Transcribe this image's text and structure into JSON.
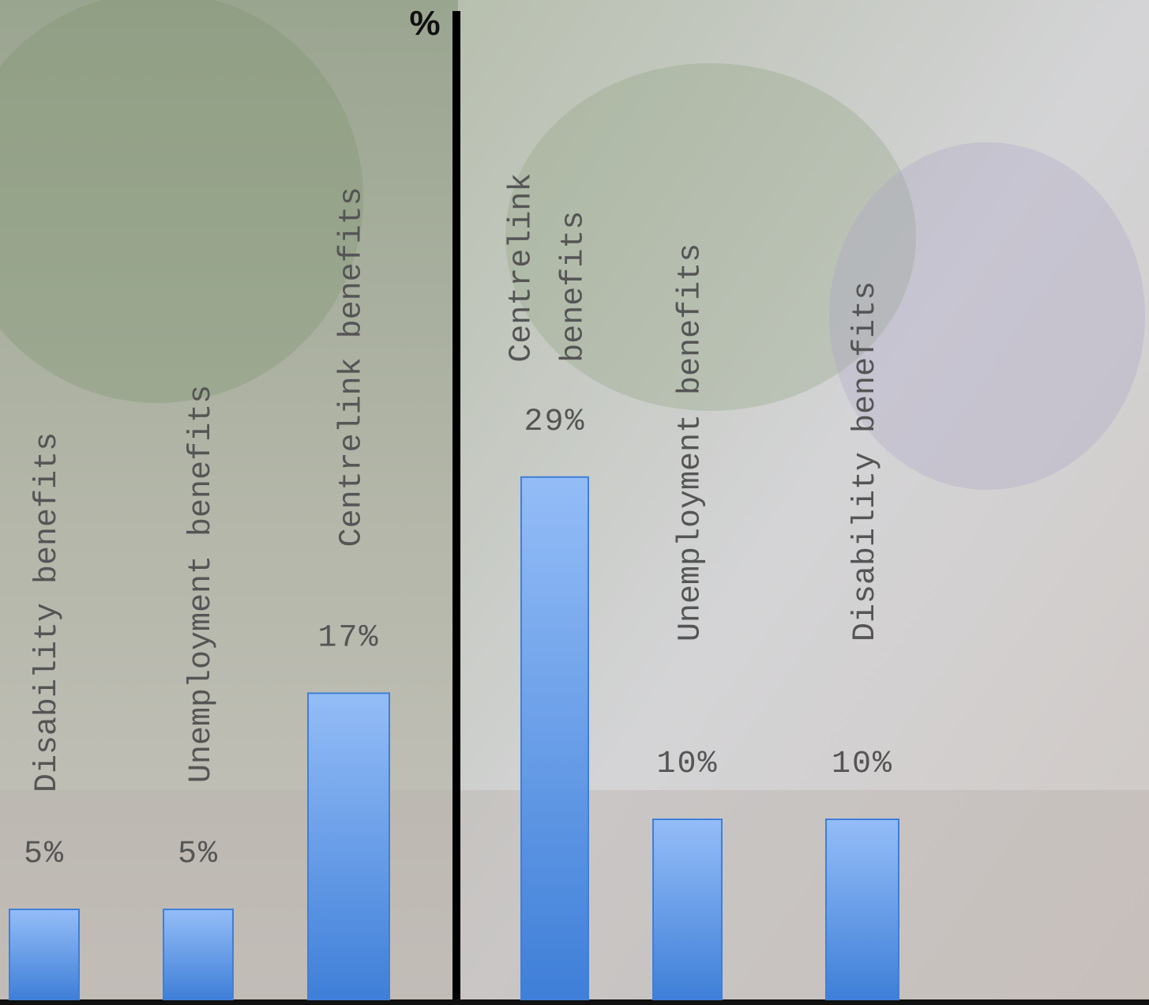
{
  "chart_data": [
    {
      "type": "bar",
      "unit_label": "%",
      "categories": [
        "Disability benefits",
        "Unemployment benefits",
        "Centrelink benefits"
      ],
      "values": [
        5,
        5,
        17
      ],
      "value_labels": [
        "5%",
        "5%",
        "17%"
      ],
      "color": "#3f7fd8"
    },
    {
      "type": "bar",
      "categories": [
        "Centrelink benefits",
        "Unemployment benefits",
        "Disability benefits"
      ],
      "values": [
        29,
        10,
        10
      ],
      "value_labels": [
        "29%",
        "10%",
        "10%"
      ],
      "color": "#3f7fd8"
    }
  ]
}
